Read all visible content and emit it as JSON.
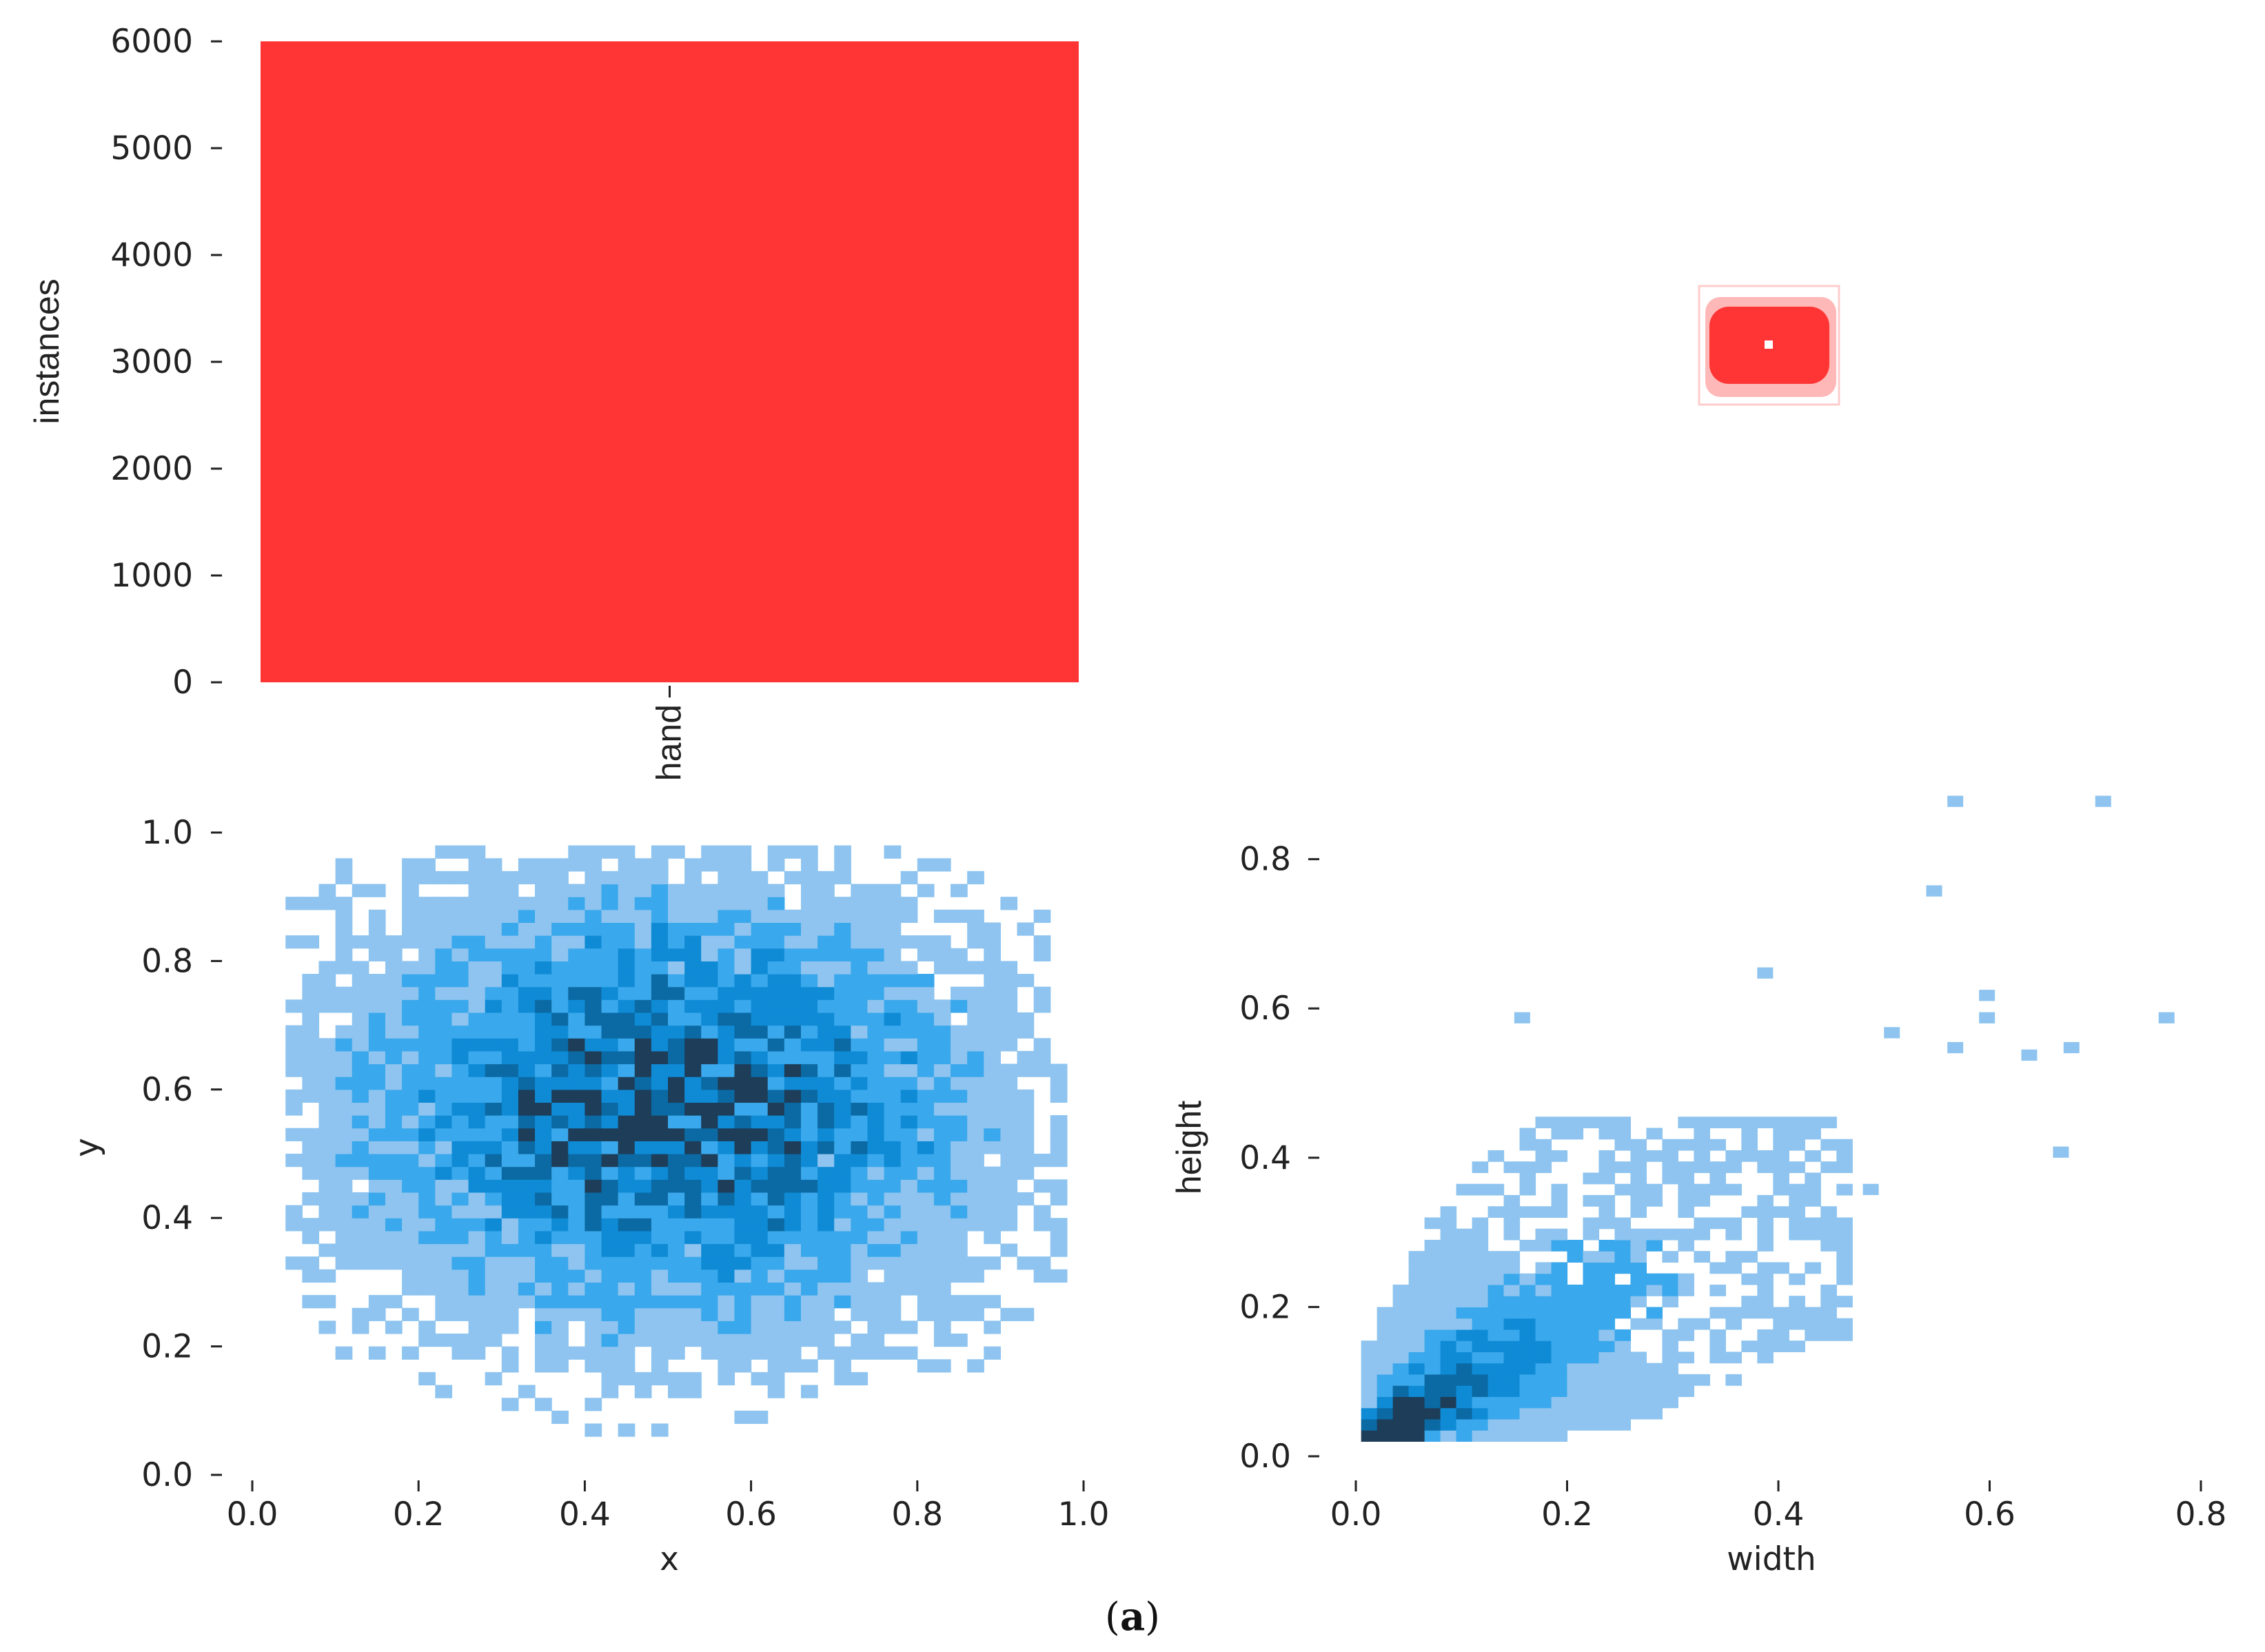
{
  "caption": {
    "open": "(",
    "letter": "a",
    "close": ")"
  },
  "colors": {
    "bar": "#ff3535",
    "hist_light": "#8ec4ef",
    "hist_mid": "#3aa8ec",
    "hist_strong": "#0f8bd6",
    "hist_dark": "#0b6aa4",
    "hist_darkest": "#1d3d58"
  },
  "chart_data": [
    {
      "id": "instances",
      "type": "bar",
      "categories": [
        "hand"
      ],
      "values": [
        6000
      ],
      "ylabel": "instances",
      "xlabel": "",
      "ylim": [
        0,
        6000
      ],
      "yticks": [
        "0",
        "1000",
        "2000",
        "3000",
        "4000",
        "5000",
        "6000"
      ],
      "grid": false
    },
    {
      "id": "boxes",
      "type": "other",
      "description_shown": false,
      "box_color": "#ff3535",
      "grid": false
    },
    {
      "id": "xy",
      "type": "heatmap",
      "xlabel": "x",
      "ylabel": "y",
      "xlim": [
        0,
        1
      ],
      "ylim": [
        0,
        1
      ],
      "xticks": [
        "0.0",
        "0.2",
        "0.4",
        "0.6",
        "0.8",
        "1.0"
      ],
      "yticks": [
        "0.0",
        "0.2",
        "0.4",
        "0.6",
        "0.8",
        "1.0"
      ],
      "bins": 50,
      "density_center": [
        0.5,
        0.57
      ],
      "density_spread": [
        0.2,
        0.18
      ],
      "grid": false
    },
    {
      "id": "wh",
      "type": "heatmap",
      "xlabel": "width",
      "ylabel": "height",
      "xlim": [
        0,
        0.8
      ],
      "ylim": [
        0,
        0.88
      ],
      "xticks": [
        "0.0",
        "0.2",
        "0.4",
        "0.6",
        "0.8"
      ],
      "yticks": [
        "0.0",
        "0.2",
        "0.4",
        "0.6",
        "0.8"
      ],
      "densest_cell": [
        0.05,
        0.05
      ],
      "outliers": [
        [
          0.56,
          0.87
        ],
        [
          0.7,
          0.87
        ],
        [
          0.54,
          0.75
        ],
        [
          0.38,
          0.64
        ],
        [
          0.59,
          0.61
        ],
        [
          0.59,
          0.58
        ],
        [
          0.76,
          0.58
        ],
        [
          0.15,
          0.58
        ],
        [
          0.5,
          0.56
        ],
        [
          0.56,
          0.54
        ],
        [
          0.67,
          0.54
        ],
        [
          0.63,
          0.53
        ],
        [
          0.66,
          0.4
        ],
        [
          0.48,
          0.35
        ]
      ],
      "grid": false
    }
  ]
}
